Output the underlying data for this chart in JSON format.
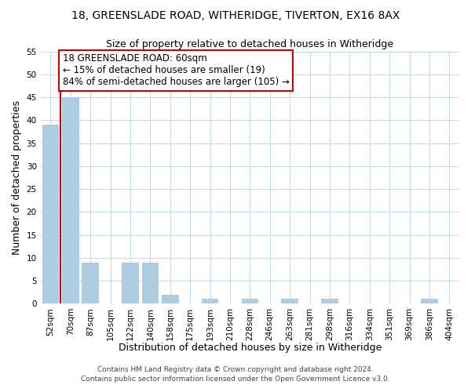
{
  "title1": "18, GREENSLADE ROAD, WITHERIDGE, TIVERTON, EX16 8AX",
  "title2": "Size of property relative to detached houses in Witheridge",
  "xlabel": "Distribution of detached houses by size in Witheridge",
  "ylabel": "Number of detached properties",
  "bar_labels": [
    "52sqm",
    "70sqm",
    "87sqm",
    "105sqm",
    "122sqm",
    "140sqm",
    "158sqm",
    "175sqm",
    "193sqm",
    "210sqm",
    "228sqm",
    "246sqm",
    "263sqm",
    "281sqm",
    "298sqm",
    "316sqm",
    "334sqm",
    "351sqm",
    "369sqm",
    "386sqm",
    "404sqm"
  ],
  "bar_values": [
    39,
    45,
    9,
    0,
    9,
    9,
    2,
    0,
    1,
    0,
    1,
    0,
    1,
    0,
    1,
    0,
    0,
    0,
    0,
    1,
    0
  ],
  "bar_color": "#aecde1",
  "highlight_color": "#cc0000",
  "annotation_line1": "18 GREENSLADE ROAD: 60sqm",
  "annotation_line2": "← 15% of detached houses are smaller (19)",
  "annotation_line3": "84% of semi-detached houses are larger (105) →",
  "annotation_box_facecolor": "#ffffff",
  "annotation_box_edgecolor": "#cc0000",
  "ylim": [
    0,
    55
  ],
  "yticks": [
    0,
    5,
    10,
    15,
    20,
    25,
    30,
    35,
    40,
    45,
    50,
    55
  ],
  "footer1": "Contains HM Land Registry data © Crown copyright and database right 2024.",
  "footer2": "Contains public sector information licensed under the Open Government Licence v3.0.",
  "background_color": "#ffffff",
  "grid_color": "#c8daea",
  "title_fontsize": 10,
  "subtitle_fontsize": 9,
  "axis_label_fontsize": 9,
  "tick_fontsize": 7.5,
  "annotation_fontsize": 8.5,
  "footer_fontsize": 6.5
}
